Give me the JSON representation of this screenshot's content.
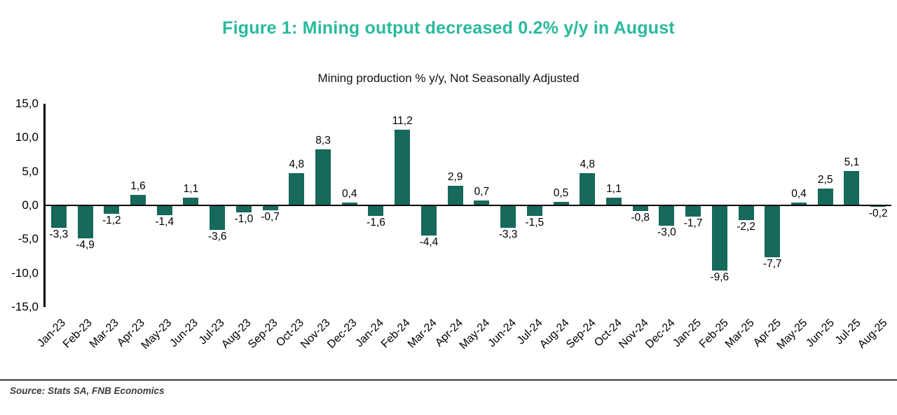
{
  "page": {
    "title": "Figure 1: Mining output decreased 0.2% y/y in August",
    "source": "Source: Stats SA, FNB Economics"
  },
  "colors": {
    "title": "#2ab99d",
    "bar": "#16695b",
    "axis": "#000000"
  },
  "chart_data": {
    "type": "bar",
    "title": "Mining production % y/y, Not Seasonally Adjusted",
    "series_name": "Mining production % y/y",
    "categories": [
      "Jan-23",
      "Feb-23",
      "Mar-23",
      "Apr-23",
      "May-23",
      "Jun-23",
      "Jul-23",
      "Aug-23",
      "Sep-23",
      "Oct-23",
      "Nov-23",
      "Dec-23",
      "Jan-24",
      "Feb-24",
      "Mar-24",
      "Apr-24",
      "May-24",
      "Jun-24",
      "Jul-24",
      "Aug-24",
      "Sep-24",
      "Oct-24",
      "Nov-24",
      "Dec-24",
      "Jan-25",
      "Feb-25",
      "Mar-25",
      "Apr-25",
      "May-25",
      "Jun-25",
      "Jul-25",
      "Aug-25"
    ],
    "values": [
      -3.3,
      -4.9,
      -1.2,
      1.6,
      -1.4,
      1.1,
      -3.6,
      -1.0,
      -0.7,
      4.8,
      8.3,
      0.4,
      -1.6,
      11.2,
      -4.4,
      2.9,
      0.7,
      -3.3,
      -1.5,
      0.5,
      4.8,
      1.1,
      -0.8,
      -3.0,
      -1.7,
      -9.6,
      -2.2,
      -7.7,
      0.4,
      2.5,
      5.1,
      -0.2
    ],
    "xlabel": "",
    "ylabel": "",
    "ylim": [
      -15,
      15
    ],
    "yticks": [
      15,
      10,
      5,
      0,
      -5,
      -10,
      -15
    ],
    "decimal_separator": ",",
    "bar_color": "#16695b",
    "grid": false,
    "legend": "none",
    "data_labels": true
  }
}
